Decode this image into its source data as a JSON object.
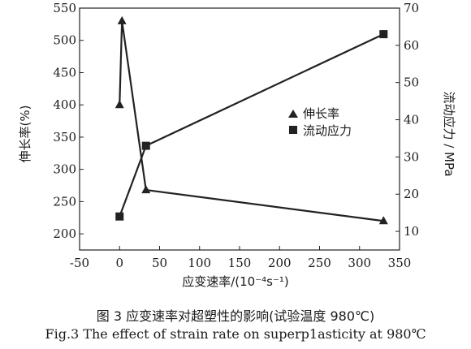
{
  "chart_data": {
    "type": "line",
    "x": [
      0,
      3,
      33,
      330
    ],
    "xlabel": "应变速率/(10⁻⁴s⁻¹)",
    "xlim": [
      -50,
      350
    ],
    "xticks": [
      -50,
      0,
      50,
      100,
      150,
      200,
      250,
      300,
      350
    ],
    "ylabel_left": "伸长率(%)",
    "ylim_left": [
      175,
      550
    ],
    "yticks_left": [
      200,
      250,
      300,
      350,
      400,
      450,
      500,
      550
    ],
    "ylabel_right": "流动应力 / MPa",
    "ylim_right": [
      5,
      70
    ],
    "yticks_right": [
      10,
      20,
      30,
      40,
      50,
      60,
      70
    ],
    "grid": false,
    "legend_position": "center-right",
    "series": [
      {
        "name": "伸长率",
        "marker": "triangle",
        "axis": "left",
        "x": [
          0,
          3,
          33,
          330
        ],
        "values": [
          400,
          530,
          268,
          220
        ]
      },
      {
        "name": "流动应力",
        "marker": "square",
        "axis": "right",
        "x": [
          0,
          33,
          330
        ],
        "values": [
          14,
          33,
          63
        ]
      }
    ]
  },
  "caption": {
    "cn": "图 3   应变速率对超塑性的影响(试验温度 980℃)",
    "en": "Fig.3   The effect of strain rate on superp1asticity at 980℃"
  },
  "colors": {
    "line": "#222222",
    "text": "#1a1a1a"
  }
}
